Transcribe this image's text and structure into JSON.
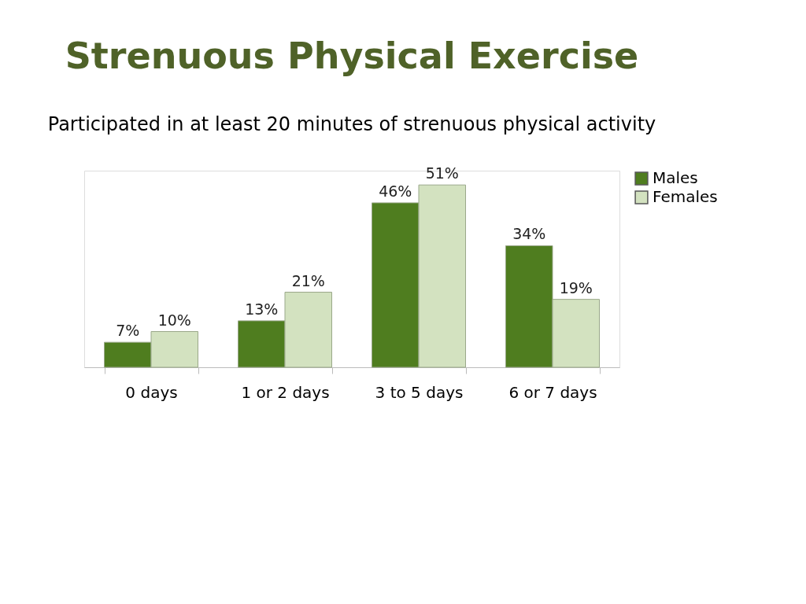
{
  "chart_data": {
    "type": "bar",
    "title": "Strenuous Physical Exercise",
    "subtitle": "Participated in at least 20 minutes of strenuous physical activity",
    "categories": [
      "0 days",
      "1 or 2 days",
      "3 to 5 days",
      "6 or 7 days"
    ],
    "series": [
      {
        "name": "Males",
        "color": "#4f7d1f",
        "values": [
          7,
          13,
          46,
          34
        ],
        "value_labels": [
          "7%",
          "13%",
          "46%",
          "34%"
        ]
      },
      {
        "name": "Females",
        "color": "#d3e2c0",
        "values": [
          10,
          21,
          51,
          19
        ],
        "value_labels": [
          "10%",
          "21%",
          "51%",
          "19%"
        ]
      }
    ],
    "legend": "right",
    "grid": false
  }
}
